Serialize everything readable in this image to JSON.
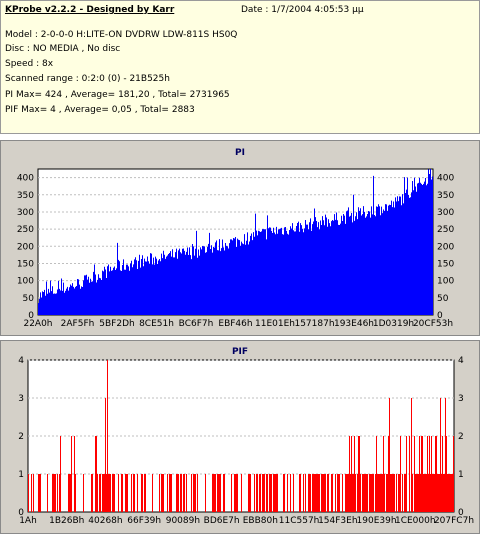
{
  "header": {
    "title": "KProbe v2.2.2 - Designed by Karr",
    "date": "Date : 1/7/2004 4:05:53 μμ",
    "model": "Model : 2-0-0-0 H:LITE-ON DVDRW LDW-811S   HS0Q",
    "disc": "Disc : NO MEDIA , No disc",
    "speed": "Speed : 8x",
    "scanned": "Scanned range : 0:2:0 (0) - 21B525h",
    "pi_stats": "PI Max= 424 , Average= 181,20 , Total= 2731965",
    "pif_stats": "PIF Max= 4 , Average= 0,05 , Total= 2883"
  },
  "colors": {
    "pi": "#0000ff",
    "pif": "#ff0000",
    "plot_bg": "#ffffff",
    "panel_bg": "#d4d0c8",
    "info_bg": "#ffffe1"
  },
  "chart_data": [
    {
      "type": "bar",
      "title": "PI",
      "ylim": [
        0,
        425
      ],
      "yticks": [
        0,
        50,
        100,
        150,
        200,
        250,
        300,
        350,
        400
      ],
      "xticks": [
        "22A0h",
        "2AF5Fh",
        "5BF2Dh",
        "8CE51h",
        "BC6F7h",
        "EBF46h",
        "11E01Eh",
        "157187h",
        "193E46h",
        "1D0319h",
        "20CF53h"
      ],
      "grid": true,
      "trend": [
        [
          0,
          55
        ],
        [
          0.1,
          90
        ],
        [
          0.2,
          140
        ],
        [
          0.3,
          165
        ],
        [
          0.4,
          185
        ],
        [
          0.5,
          215
        ],
        [
          0.6,
          245
        ],
        [
          0.7,
          265
        ],
        [
          0.8,
          290
        ],
        [
          0.9,
          320
        ],
        [
          1.0,
          410
        ]
      ],
      "spikes": [
        [
          0.03,
          100
        ],
        [
          0.2,
          210
        ],
        [
          0.4,
          245
        ],
        [
          0.55,
          295
        ],
        [
          0.58,
          290
        ],
        [
          0.7,
          310
        ],
        [
          0.8,
          350
        ],
        [
          0.85,
          405
        ],
        [
          0.95,
          390
        ],
        [
          0.99,
          424
        ]
      ]
    },
    {
      "type": "bar",
      "title": "PIF",
      "ylim": [
        0,
        4
      ],
      "yticks": [
        0,
        1,
        2,
        3,
        4
      ],
      "xticks": [
        "1Ah",
        "1B26Bh",
        "40268h",
        "66F39h",
        "90089h",
        "BD6E7h",
        "EBB80h",
        "11C557h",
        "154F3Eh",
        "190E39h",
        "1CE000h",
        "207FC7h"
      ],
      "grid": true,
      "max": 4,
      "spikes": [
        [
          0.185,
          4
        ],
        [
          0.18,
          3
        ],
        [
          0.186,
          3
        ],
        [
          0.85,
          3
        ],
        [
          0.9,
          3
        ],
        [
          0.97,
          3
        ],
        [
          0.98,
          3
        ]
      ]
    }
  ]
}
